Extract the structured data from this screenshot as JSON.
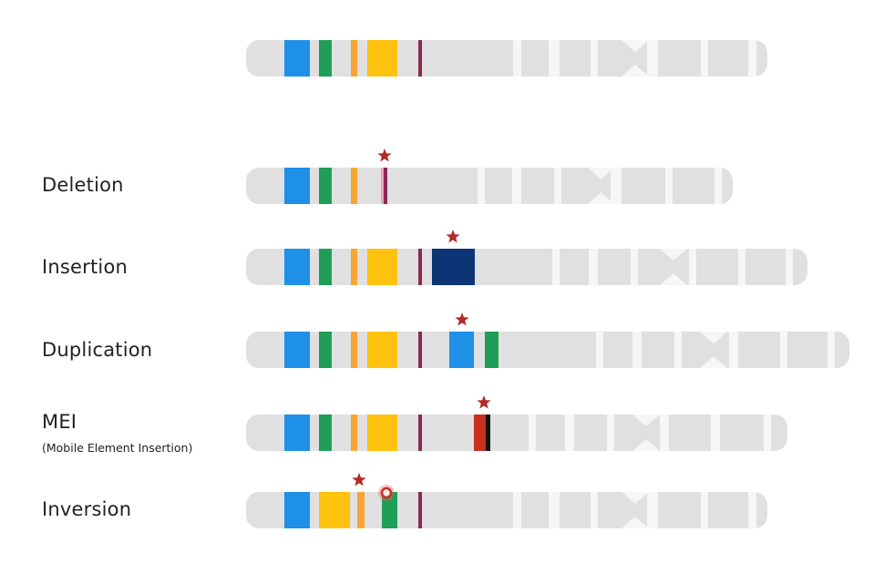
{
  "rows": {
    "deletion": "Deletion",
    "insertion": "Insertion",
    "duplication": "Duplication",
    "mei": "MEI",
    "mei_sub": "(Mobile Element Insertion)",
    "inversion": "Inversion"
  },
  "colors": {
    "chromosome": "#e0e0e0",
    "gap": "#f6f6f6",
    "light_blue": "#1e90e8",
    "green": "#1f9e57",
    "orange": "#f7a535",
    "yellow": "#ffc20e",
    "purple_line": "#8b2a55",
    "pink_line": "#e8a6c0",
    "navy": "#0d3575",
    "red": "#c83020",
    "black": "#111111",
    "star": "#b32a2a"
  }
}
